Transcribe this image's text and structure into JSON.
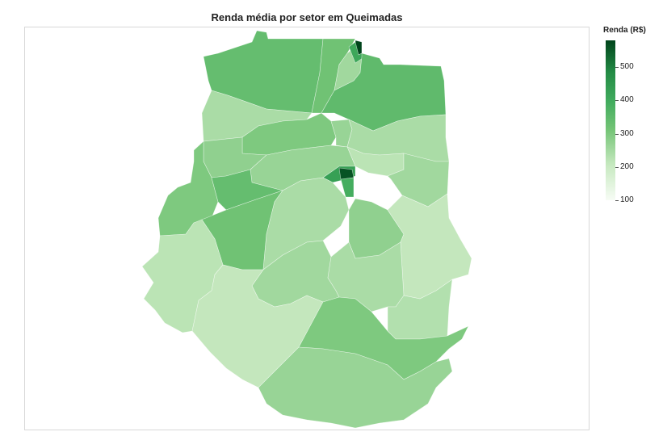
{
  "title": "Renda média por setor em Queimadas",
  "legend": {
    "title": "Renda (R$)",
    "min": 100,
    "max": 580,
    "ticks": [
      "500",
      "400",
      "300",
      "200",
      "100"
    ],
    "tick_values": [
      500,
      400,
      300,
      200,
      100
    ],
    "colors": [
      "#f7fcf5",
      "#c7e9c0",
      "#74c476",
      "#41ab5d",
      "#238b45",
      "#00441b"
    ]
  },
  "map": {
    "type": "choropleth",
    "variable": "Renda (R$)",
    "region_values": [
      {
        "name": "north-west",
        "value": 320
      },
      {
        "name": "north-strip",
        "value": 300
      },
      {
        "name": "north-east",
        "value": 330
      },
      {
        "name": "north-light",
        "value": 240
      },
      {
        "name": "north-tip",
        "value": 580
      },
      {
        "name": "north-tip-2",
        "value": 400
      },
      {
        "name": "west-upper",
        "value": 230
      },
      {
        "name": "west-mid",
        "value": 260
      },
      {
        "name": "center-north",
        "value": 280
      },
      {
        "name": "center-band",
        "value": 250
      },
      {
        "name": "west-box",
        "value": 240
      },
      {
        "name": "east-upper",
        "value": 230
      },
      {
        "name": "east-small",
        "value": 210
      },
      {
        "name": "center-core",
        "value": 560
      },
      {
        "name": "center-core-2",
        "value": 380
      },
      {
        "name": "center-core-3",
        "value": 420
      },
      {
        "name": "west-strip",
        "value": 280
      },
      {
        "name": "west-green",
        "value": 320
      },
      {
        "name": "west-dark",
        "value": 300
      },
      {
        "name": "center-south",
        "value": 230
      },
      {
        "name": "center-mid",
        "value": 250
      },
      {
        "name": "center-thin",
        "value": 260
      },
      {
        "name": "east-mid",
        "value": 240
      },
      {
        "name": "east-lower",
        "value": 200
      },
      {
        "name": "west-lower",
        "value": 210
      },
      {
        "name": "south-west",
        "value": 200
      },
      {
        "name": "south-center",
        "value": 240
      },
      {
        "name": "south-center-2",
        "value": 230
      },
      {
        "name": "south-band",
        "value": 280
      },
      {
        "name": "south-east",
        "value": 220
      },
      {
        "name": "south",
        "value": 250
      }
    ]
  }
}
